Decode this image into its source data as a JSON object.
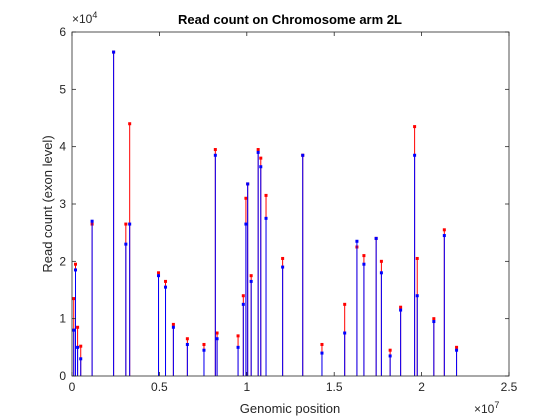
{
  "chart_data": {
    "type": "line",
    "title": "Read count on Chromosome arm 2L",
    "xlabel": "Genomic position",
    "ylabel": "Read count (exon level)",
    "xlim": [
      0,
      25000000
    ],
    "ylim": [
      0,
      60000
    ],
    "xticks": [
      0,
      0.5,
      1,
      1.5,
      2,
      2.5
    ],
    "xtick_labels": [
      "0",
      "0.5",
      "1",
      "1.5",
      "2",
      "2.5"
    ],
    "x_exponent_label": "×10",
    "x_exponent_power": "7",
    "yticks": [
      0,
      1,
      2,
      3,
      4,
      5,
      6
    ],
    "ytick_labels": [
      "0",
      "1",
      "2",
      "3",
      "4",
      "5",
      "6"
    ],
    "y_exponent_label": "×10",
    "y_exponent_power": "4",
    "grid": false,
    "colors": {
      "series_a": "#ff0000",
      "series_b": "#0000ff"
    },
    "series": [
      {
        "color": "#ff0000",
        "x": [
          100000,
          200000,
          320000,
          500000,
          1150000,
          2380000,
          3080000,
          3300000,
          4950000,
          5350000,
          5800000,
          6600000,
          7550000,
          8200000,
          8300000,
          9500000,
          9800000,
          9950000,
          10050000,
          10250000,
          10650000,
          10800000,
          11100000,
          12050000,
          13200000,
          14300000,
          15600000,
          16300000,
          16700000,
          17400000,
          17700000,
          18200000,
          18800000,
          19600000,
          19750000,
          20700000,
          21300000,
          22000000
        ],
        "y": [
          13500,
          19500,
          8500,
          5200,
          26500,
          56500,
          26500,
          44000,
          18000,
          16500,
          9000,
          6500,
          5500,
          39500,
          7500,
          7000,
          14000,
          31000,
          33500,
          17500,
          39500,
          38000,
          31500,
          20500,
          38500,
          5500,
          12500,
          22500,
          21000,
          24000,
          20000,
          4500,
          12000,
          43500,
          20500,
          10000,
          25500,
          5000
        ]
      },
      {
        "color": "#0000ff",
        "x": [
          100000,
          200000,
          320000,
          500000,
          1150000,
          2380000,
          3080000,
          3300000,
          4950000,
          5350000,
          5800000,
          6600000,
          7550000,
          8200000,
          8300000,
          9500000,
          9800000,
          9950000,
          10050000,
          10250000,
          10650000,
          10800000,
          11100000,
          12050000,
          13200000,
          14300000,
          15600000,
          16300000,
          16700000,
          17400000,
          17700000,
          18200000,
          18800000,
          19600000,
          19750000,
          20700000,
          21300000,
          22000000
        ],
        "y": [
          8000,
          18500,
          5000,
          3000,
          27000,
          56500,
          23000,
          26500,
          17500,
          15500,
          8500,
          5500,
          4500,
          38500,
          6500,
          5000,
          12500,
          26500,
          33500,
          16500,
          39000,
          36500,
          27500,
          19000,
          38500,
          4000,
          7500,
          23500,
          19500,
          24000,
          18000,
          3500,
          11500,
          38500,
          14000,
          9500,
          24500,
          4500
        ]
      }
    ]
  }
}
